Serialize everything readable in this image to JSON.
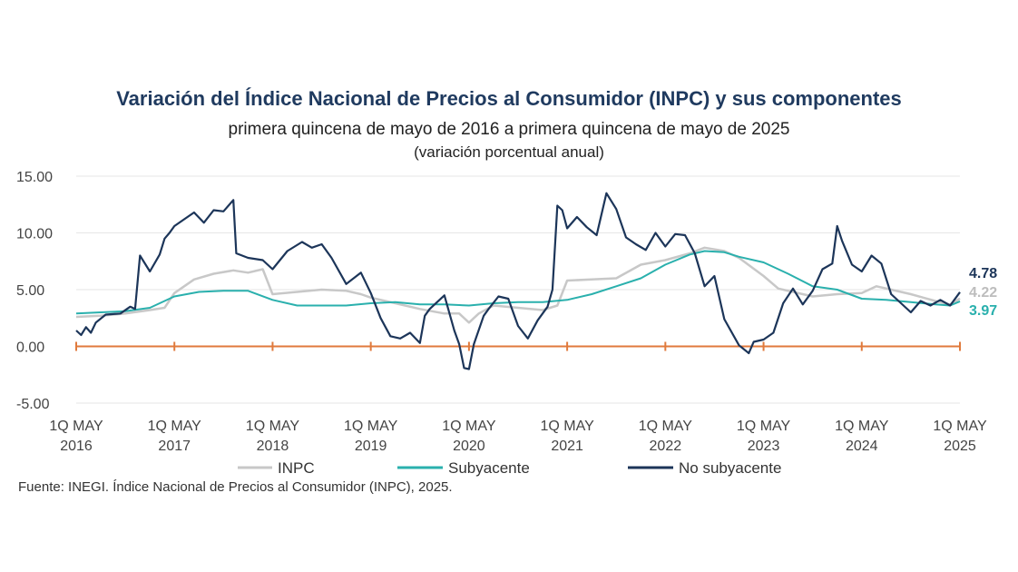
{
  "header": {
    "title": "Variación del Índice Nacional de Precios al Consumidor (INPC) y sus componentes",
    "subtitle": "primera quincena de mayo de 2016 a primera quincena de mayo de 2025",
    "unit": "(variación porcentual anual)"
  },
  "footer": {
    "source": "Fuente: INEGI. Índice Nacional de Precios al Consumidor (INPC), 2025."
  },
  "colors": {
    "inpc": "#c8c8c8",
    "subyacente": "#2ab0ad",
    "no_subyacente": "#1c3559",
    "zero_axis": "#e07a3c",
    "grid": "#e6e6e6"
  },
  "chart_data": {
    "type": "line",
    "ylim": [
      -5,
      15
    ],
    "yticks": [
      "15.00",
      "10.00",
      "5.00",
      "0.00",
      "-5.00"
    ],
    "ytick_values": [
      15,
      10,
      5,
      0,
      -5
    ],
    "xlim": [
      2016,
      2025
    ],
    "xticks": [
      {
        "line1": "1Q MAY",
        "line2": "2016",
        "x": 2016
      },
      {
        "line1": "1Q MAY",
        "line2": "2017",
        "x": 2017
      },
      {
        "line1": "1Q MAY",
        "line2": "2018",
        "x": 2018
      },
      {
        "line1": "1Q MAY",
        "line2": "2019",
        "x": 2019
      },
      {
        "line1": "1Q MAY",
        "line2": "2020",
        "x": 2020
      },
      {
        "line1": "1Q MAY",
        "line2": "2021",
        "x": 2021
      },
      {
        "line1": "1Q MAY",
        "line2": "2022",
        "x": 2022
      },
      {
        "line1": "1Q MAY",
        "line2": "2023",
        "x": 2023
      },
      {
        "line1": "1Q MAY",
        "line2": "2024",
        "x": 2024
      },
      {
        "line1": "1Q MAY",
        "line2": "2025",
        "x": 2025
      }
    ],
    "legend_position": "bottom",
    "series": [
      {
        "name": "INPC",
        "key": "inpc",
        "end_label": "4.22",
        "points": [
          [
            2016,
            2.6
          ],
          [
            2016.25,
            2.7
          ],
          [
            2016.5,
            2.9
          ],
          [
            2016.75,
            3.2
          ],
          [
            2016.9,
            3.4
          ],
          [
            2017,
            4.7
          ],
          [
            2017.2,
            5.9
          ],
          [
            2017.4,
            6.4
          ],
          [
            2017.6,
            6.7
          ],
          [
            2017.75,
            6.5
          ],
          [
            2017.9,
            6.8
          ],
          [
            2018,
            4.6
          ],
          [
            2018.25,
            4.8
          ],
          [
            2018.5,
            5.0
          ],
          [
            2018.75,
            4.9
          ],
          [
            2018.9,
            4.6
          ],
          [
            2019,
            4.3
          ],
          [
            2019.25,
            3.8
          ],
          [
            2019.5,
            3.3
          ],
          [
            2019.75,
            2.9
          ],
          [
            2019.9,
            2.9
          ],
          [
            2020,
            2.1
          ],
          [
            2020.1,
            2.9
          ],
          [
            2020.25,
            3.6
          ],
          [
            2020.5,
            3.4
          ],
          [
            2020.75,
            3.2
          ],
          [
            2020.9,
            3.6
          ],
          [
            2021,
            5.8
          ],
          [
            2021.25,
            5.9
          ],
          [
            2021.5,
            6.0
          ],
          [
            2021.75,
            7.2
          ],
          [
            2022,
            7.6
          ],
          [
            2022.25,
            8.2
          ],
          [
            2022.4,
            8.7
          ],
          [
            2022.6,
            8.4
          ],
          [
            2022.75,
            7.8
          ],
          [
            2023,
            6.2
          ],
          [
            2023.15,
            5.1
          ],
          [
            2023.3,
            4.8
          ],
          [
            2023.5,
            4.4
          ],
          [
            2023.75,
            4.6
          ],
          [
            2024,
            4.7
          ],
          [
            2024.15,
            5.3
          ],
          [
            2024.3,
            5.0
          ],
          [
            2024.5,
            4.6
          ],
          [
            2024.75,
            4.0
          ],
          [
            2024.9,
            3.7
          ],
          [
            2025,
            4.22
          ]
        ]
      },
      {
        "name": "Subyacente",
        "key": "subyacente",
        "end_label": "3.97",
        "points": [
          [
            2016,
            2.9
          ],
          [
            2016.25,
            3.0
          ],
          [
            2016.5,
            3.1
          ],
          [
            2016.75,
            3.4
          ],
          [
            2017,
            4.4
          ],
          [
            2017.25,
            4.8
          ],
          [
            2017.5,
            4.9
          ],
          [
            2017.75,
            4.9
          ],
          [
            2018,
            4.1
          ],
          [
            2018.25,
            3.6
          ],
          [
            2018.5,
            3.6
          ],
          [
            2018.75,
            3.6
          ],
          [
            2019,
            3.8
          ],
          [
            2019.25,
            3.9
          ],
          [
            2019.5,
            3.7
          ],
          [
            2019.75,
            3.7
          ],
          [
            2020,
            3.6
          ],
          [
            2020.25,
            3.8
          ],
          [
            2020.5,
            3.9
          ],
          [
            2020.75,
            3.9
          ],
          [
            2021,
            4.1
          ],
          [
            2021.25,
            4.6
          ],
          [
            2021.5,
            5.3
          ],
          [
            2021.75,
            6.0
          ],
          [
            2022,
            7.2
          ],
          [
            2022.25,
            8.1
          ],
          [
            2022.4,
            8.4
          ],
          [
            2022.6,
            8.3
          ],
          [
            2022.75,
            7.9
          ],
          [
            2023,
            7.4
          ],
          [
            2023.25,
            6.4
          ],
          [
            2023.5,
            5.3
          ],
          [
            2023.75,
            5.0
          ],
          [
            2024,
            4.2
          ],
          [
            2024.25,
            4.1
          ],
          [
            2024.5,
            3.9
          ],
          [
            2024.75,
            3.7
          ],
          [
            2024.9,
            3.6
          ],
          [
            2025,
            3.97
          ]
        ]
      },
      {
        "name": "No subyacente",
        "key": "no_subyacente",
        "end_label": "4.78",
        "points": [
          [
            2016,
            1.4
          ],
          [
            2016.05,
            1.0
          ],
          [
            2016.1,
            1.7
          ],
          [
            2016.15,
            1.2
          ],
          [
            2016.2,
            2.1
          ],
          [
            2016.3,
            2.8
          ],
          [
            2016.45,
            2.9
          ],
          [
            2016.55,
            3.5
          ],
          [
            2016.6,
            3.3
          ],
          [
            2016.65,
            8.0
          ],
          [
            2016.75,
            6.6
          ],
          [
            2016.85,
            8.1
          ],
          [
            2016.9,
            9.5
          ],
          [
            2016.95,
            10.0
          ],
          [
            2017,
            10.6
          ],
          [
            2017.1,
            11.2
          ],
          [
            2017.2,
            11.8
          ],
          [
            2017.3,
            10.9
          ],
          [
            2017.4,
            12.0
          ],
          [
            2017.5,
            11.9
          ],
          [
            2017.6,
            12.9
          ],
          [
            2017.63,
            8.2
          ],
          [
            2017.75,
            7.8
          ],
          [
            2017.9,
            7.6
          ],
          [
            2018,
            6.8
          ],
          [
            2018.15,
            8.4
          ],
          [
            2018.3,
            9.2
          ],
          [
            2018.4,
            8.7
          ],
          [
            2018.5,
            9.0
          ],
          [
            2018.6,
            7.8
          ],
          [
            2018.75,
            5.5
          ],
          [
            2018.9,
            6.5
          ],
          [
            2019,
            4.7
          ],
          [
            2019.1,
            2.5
          ],
          [
            2019.2,
            0.9
          ],
          [
            2019.3,
            0.7
          ],
          [
            2019.4,
            1.2
          ],
          [
            2019.5,
            0.3
          ],
          [
            2019.55,
            2.7
          ],
          [
            2019.6,
            3.3
          ],
          [
            2019.75,
            4.5
          ],
          [
            2019.85,
            1.4
          ],
          [
            2019.9,
            0.2
          ],
          [
            2019.95,
            -1.9
          ],
          [
            2020,
            -2.0
          ],
          [
            2020.05,
            0.2
          ],
          [
            2020.15,
            2.7
          ],
          [
            2020.2,
            3.3
          ],
          [
            2020.3,
            4.4
          ],
          [
            2020.4,
            4.2
          ],
          [
            2020.5,
            1.8
          ],
          [
            2020.6,
            0.7
          ],
          [
            2020.7,
            2.3
          ],
          [
            2020.8,
            3.5
          ],
          [
            2020.85,
            5.0
          ],
          [
            2020.9,
            12.4
          ],
          [
            2020.95,
            12.0
          ],
          [
            2021,
            10.4
          ],
          [
            2021.1,
            11.4
          ],
          [
            2021.2,
            10.5
          ],
          [
            2021.3,
            9.8
          ],
          [
            2021.4,
            13.5
          ],
          [
            2021.5,
            12.1
          ],
          [
            2021.6,
            9.6
          ],
          [
            2021.7,
            9.0
          ],
          [
            2021.8,
            8.5
          ],
          [
            2021.9,
            10.0
          ],
          [
            2022,
            8.8
          ],
          [
            2022.1,
            9.9
          ],
          [
            2022.2,
            9.8
          ],
          [
            2022.3,
            8.2
          ],
          [
            2022.4,
            5.3
          ],
          [
            2022.5,
            6.2
          ],
          [
            2022.6,
            2.4
          ],
          [
            2022.75,
            0.1
          ],
          [
            2022.85,
            -0.6
          ],
          [
            2022.9,
            0.4
          ],
          [
            2023,
            0.6
          ],
          [
            2023.1,
            1.2
          ],
          [
            2023.2,
            3.8
          ],
          [
            2023.3,
            5.1
          ],
          [
            2023.4,
            3.7
          ],
          [
            2023.5,
            4.9
          ],
          [
            2023.6,
            6.8
          ],
          [
            2023.7,
            7.3
          ],
          [
            2023.75,
            10.6
          ],
          [
            2023.8,
            9.3
          ],
          [
            2023.9,
            7.2
          ],
          [
            2024,
            6.6
          ],
          [
            2024.1,
            8.0
          ],
          [
            2024.2,
            7.3
          ],
          [
            2024.3,
            4.6
          ],
          [
            2024.4,
            3.8
          ],
          [
            2024.5,
            3.0
          ],
          [
            2024.6,
            4.0
          ],
          [
            2024.7,
            3.6
          ],
          [
            2024.8,
            4.1
          ],
          [
            2024.9,
            3.6
          ],
          [
            2025,
            4.78
          ]
        ]
      }
    ]
  }
}
